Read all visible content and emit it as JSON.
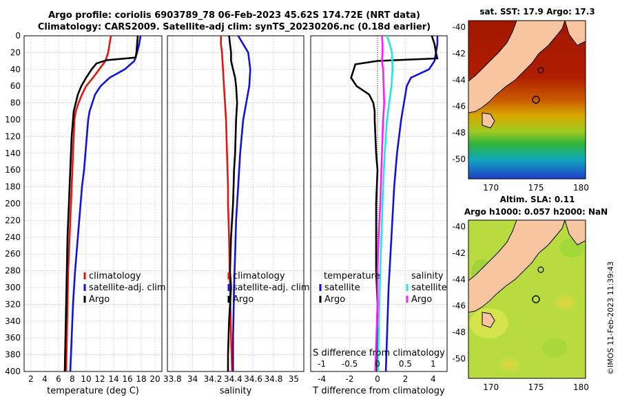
{
  "header": {
    "title_line1": "Argo profile: coriolis 6903789_78 06-Feb-2023 45.62S 174.72E (NRT data)",
    "title_line2": "Climatology: CARS2009. Satellite-adj clim: synTS_20230206.nc (0.18d earlier)"
  },
  "credit": "©IMOS 11-Feb-2023 11:39:43",
  "colors": {
    "climatology": "#e8120c",
    "satellite": "#1010e0",
    "argo": "#000000",
    "sat_salinity": "#22e4e4",
    "argo_salinity": "#ff19ff"
  },
  "chart_data": [
    {
      "type": "line",
      "name": "temperature",
      "xlabel": "temperature (deg C)",
      "ylabel": "",
      "xlim": [
        1,
        21
      ],
      "ylim": [
        400,
        0
      ],
      "xticks": [
        2,
        4,
        6,
        8,
        10,
        12,
        14,
        16,
        18,
        20
      ],
      "yticks": [
        0,
        20,
        40,
        60,
        80,
        100,
        120,
        140,
        160,
        180,
        200,
        220,
        240,
        260,
        280,
        300,
        320,
        340,
        360,
        380,
        400
      ],
      "grid": true,
      "legend_position": "bottom-right",
      "legend": [
        "climatology",
        "satellite-adj. clim",
        "Argo"
      ],
      "series": [
        {
          "name": "climatology",
          "color": "#e8120c",
          "points": [
            [
              13.6,
              0
            ],
            [
              13.4,
              10
            ],
            [
              13.2,
              20
            ],
            [
              12.8,
              30
            ],
            [
              11.9,
              40
            ],
            [
              11,
              50
            ],
            [
              10,
              60
            ],
            [
              9.4,
              70
            ],
            [
              8.9,
              80
            ],
            [
              8.5,
              90
            ],
            [
              8.3,
              100
            ],
            [
              8.2,
              120
            ],
            [
              8.1,
              140
            ],
            [
              8,
              160
            ],
            [
              7.9,
              180
            ],
            [
              7.8,
              200
            ],
            [
              7.6,
              240
            ],
            [
              7.4,
              280
            ],
            [
              7.3,
              320
            ],
            [
              7.2,
              360
            ],
            [
              7.1,
              400
            ]
          ]
        },
        {
          "name": "satellite-adj. clim",
          "color": "#1010e0",
          "points": [
            [
              17.9,
              0
            ],
            [
              17.7,
              10
            ],
            [
              17.4,
              20
            ],
            [
              17,
              30
            ],
            [
              15.6,
              40
            ],
            [
              13.4,
              50
            ],
            [
              12.1,
              60
            ],
            [
              11.3,
              70
            ],
            [
              10.9,
              80
            ],
            [
              10.5,
              90
            ],
            [
              10.3,
              100
            ],
            [
              10.1,
              120
            ],
            [
              9.9,
              140
            ],
            [
              9.7,
              160
            ],
            [
              9.4,
              180
            ],
            [
              9.2,
              200
            ],
            [
              8.8,
              240
            ],
            [
              8.4,
              280
            ],
            [
              8.1,
              320
            ],
            [
              7.9,
              360
            ],
            [
              7.7,
              400
            ]
          ]
        },
        {
          "name": "Argo",
          "color": "#000000",
          "points": [
            [
              17.5,
              0
            ],
            [
              17.4,
              10
            ],
            [
              17.3,
              20
            ],
            [
              17.2,
              26
            ],
            [
              13,
              29
            ],
            [
              11.5,
              33
            ],
            [
              10.8,
              40
            ],
            [
              10,
              50
            ],
            [
              9.3,
              60
            ],
            [
              8.8,
              70
            ],
            [
              8.5,
              80
            ],
            [
              8.2,
              90
            ],
            [
              8.1,
              100
            ],
            [
              7.9,
              120
            ],
            [
              7.8,
              140
            ],
            [
              7.7,
              160
            ],
            [
              7.6,
              180
            ],
            [
              7.5,
              200
            ],
            [
              7.3,
              240
            ],
            [
              7.2,
              280
            ],
            [
              7.1,
              320
            ],
            [
              7,
              360
            ],
            [
              6.9,
              400
            ]
          ]
        }
      ]
    },
    {
      "type": "line",
      "name": "salinity",
      "xlabel": "salinity",
      "xlim": [
        33.75,
        35.1
      ],
      "ylim": [
        400,
        0
      ],
      "xticks": [
        33.8,
        34,
        34.2,
        34.4,
        34.6,
        34.8,
        35
      ],
      "grid": true,
      "legend_position": "bottom-right",
      "legend": [
        "climatology",
        "satellite-adj. clim",
        "Argo"
      ],
      "series": [
        {
          "name": "climatology",
          "color": "#e8120c",
          "points": [
            [
              34.28,
              0
            ],
            [
              34.28,
              10
            ],
            [
              34.29,
              20
            ],
            [
              34.3,
              40
            ],
            [
              34.31,
              60
            ],
            [
              34.32,
              80
            ],
            [
              34.33,
              100
            ],
            [
              34.34,
              140
            ],
            [
              34.35,
              180
            ],
            [
              34.35,
              200
            ],
            [
              34.36,
              240
            ],
            [
              34.37,
              300
            ],
            [
              34.38,
              360
            ],
            [
              34.39,
              400
            ]
          ]
        },
        {
          "name": "satellite-adj. clim",
          "color": "#1010e0",
          "points": [
            [
              34.45,
              0
            ],
            [
              34.5,
              10
            ],
            [
              34.55,
              20
            ],
            [
              34.57,
              40
            ],
            [
              34.56,
              60
            ],
            [
              34.53,
              80
            ],
            [
              34.5,
              100
            ],
            [
              34.47,
              140
            ],
            [
              34.45,
              180
            ],
            [
              34.43,
              220
            ],
            [
              34.42,
              260
            ],
            [
              34.41,
              300
            ],
            [
              34.4,
              360
            ],
            [
              34.4,
              400
            ]
          ]
        },
        {
          "name": "Argo",
          "color": "#000000",
          "points": [
            [
              34.36,
              0
            ],
            [
              34.37,
              10
            ],
            [
              34.38,
              20
            ],
            [
              34.38,
              30
            ],
            [
              34.4,
              40
            ],
            [
              34.42,
              50
            ],
            [
              34.43,
              60
            ],
            [
              34.44,
              80
            ],
            [
              34.43,
              100
            ],
            [
              34.42,
              140
            ],
            [
              34.41,
              160
            ],
            [
              34.4,
              200
            ],
            [
              34.38,
              240
            ],
            [
              34.37,
              280
            ],
            [
              34.38,
              300
            ],
            [
              34.36,
              340
            ],
            [
              34.35,
              380
            ],
            [
              34.35,
              400
            ]
          ]
        }
      ]
    },
    {
      "type": "line",
      "name": "difference",
      "xlabel": "T difference from climatology",
      "xlabel_top": "S difference from climatology",
      "xlim": [
        -4.8,
        5
      ],
      "ylim": [
        400,
        0
      ],
      "xticks": [
        -4,
        -2,
        0,
        2,
        4
      ],
      "sticks": [
        -1,
        -0.5,
        0,
        0.5,
        1
      ],
      "stick_labels": [
        "-1",
        "-0.5",
        "0",
        "0.5",
        "1"
      ],
      "grid": true,
      "legend_position": "bottom",
      "legend_temperature_title": "temperature",
      "legend_salinity_title": "salinity",
      "legend_temperature": [
        "satellite",
        "Argo"
      ],
      "legend_salinity": [
        "satellite",
        "Argo"
      ],
      "series": [
        {
          "name": "T satellite",
          "color": "#1010e0",
          "points": [
            [
              4.3,
              0
            ],
            [
              4.3,
              10
            ],
            [
              4.2,
              20
            ],
            [
              4.1,
              30
            ],
            [
              3.7,
              40
            ],
            [
              2.4,
              50
            ],
            [
              2.1,
              60
            ],
            [
              1.9,
              80
            ],
            [
              1.7,
              100
            ],
            [
              1.4,
              140
            ],
            [
              1.2,
              180
            ],
            [
              1,
              240
            ],
            [
              0.8,
              300
            ],
            [
              0.7,
              350
            ],
            [
              0.6,
              400
            ]
          ]
        },
        {
          "name": "T Argo",
          "color": "#000000",
          "points": [
            [
              3.9,
              0
            ],
            [
              4.1,
              10
            ],
            [
              4.2,
              20
            ],
            [
              4.3,
              27
            ],
            [
              0,
              30
            ],
            [
              -1.6,
              34
            ],
            [
              -1.7,
              40
            ],
            [
              -1.9,
              50
            ],
            [
              -1.5,
              60
            ],
            [
              -0.6,
              70
            ],
            [
              -0.3,
              80
            ],
            [
              -0.2,
              90
            ],
            [
              -0.2,
              100
            ],
            [
              -0.1,
              140
            ],
            [
              0,
              160
            ],
            [
              -0.1,
              200
            ],
            [
              -0.1,
              280
            ],
            [
              0,
              320
            ],
            [
              -0.1,
              400
            ]
          ]
        },
        {
          "name": "S satellite",
          "color": "#22e4e4",
          "units": "salinity",
          "points": [
            [
              0.17,
              0
            ],
            [
              0.22,
              10
            ],
            [
              0.26,
              20
            ],
            [
              0.27,
              40
            ],
            [
              0.25,
              60
            ],
            [
              0.21,
              80
            ],
            [
              0.17,
              100
            ],
            [
              0.13,
              140
            ],
            [
              0.1,
              180
            ],
            [
              0.08,
              220
            ],
            [
              0.06,
              260
            ],
            [
              0.04,
              300
            ],
            [
              0.02,
              360
            ],
            [
              0.01,
              400
            ]
          ]
        },
        {
          "name": "S Argo",
          "color": "#ff19ff",
          "units": "salinity",
          "points": [
            [
              0.08,
              0
            ],
            [
              0.09,
              10
            ],
            [
              0.09,
              20
            ],
            [
              0.08,
              30
            ],
            [
              0.1,
              40
            ],
            [
              0.11,
              60
            ],
            [
              0.12,
              80
            ],
            [
              0.1,
              100
            ],
            [
              0.08,
              140
            ],
            [
              0.06,
              180
            ],
            [
              0.05,
              200
            ],
            [
              0.02,
              240
            ],
            [
              0,
              280
            ],
            [
              0,
              320
            ],
            [
              -0.02,
              360
            ],
            [
              -0.04,
              400
            ]
          ]
        }
      ]
    },
    {
      "type": "heatmap",
      "name": "sst-map",
      "title": "sat. SST: 17.9  Argo: 17.3",
      "xlim": [
        167.5,
        180.5
      ],
      "ylim": [
        -51.5,
        -39.5
      ],
      "xticks": [
        170,
        175,
        180
      ],
      "yticks": [
        -40,
        -42,
        -44,
        -46,
        -48,
        -50
      ],
      "argo_position": [
        174.72,
        -45.62
      ]
    },
    {
      "type": "heatmap",
      "name": "sla-map",
      "title_line1": "Altim. SLA: 0.11",
      "title_line2": "Argo h1000: 0.057 h2000: NaN",
      "xlim": [
        167.5,
        180.5
      ],
      "ylim": [
        -51.5,
        -39.5
      ],
      "xticks": [
        170,
        175,
        180
      ],
      "yticks": [
        -40,
        -42,
        -44,
        -46,
        -48,
        -50
      ],
      "argo_position": [
        174.72,
        -45.62
      ]
    }
  ]
}
